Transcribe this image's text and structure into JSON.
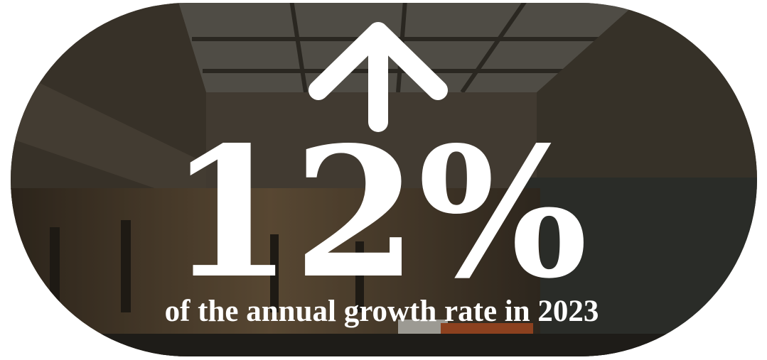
{
  "stat": {
    "value": "12%",
    "caption": "of the annual growth rate in 2023"
  }
}
